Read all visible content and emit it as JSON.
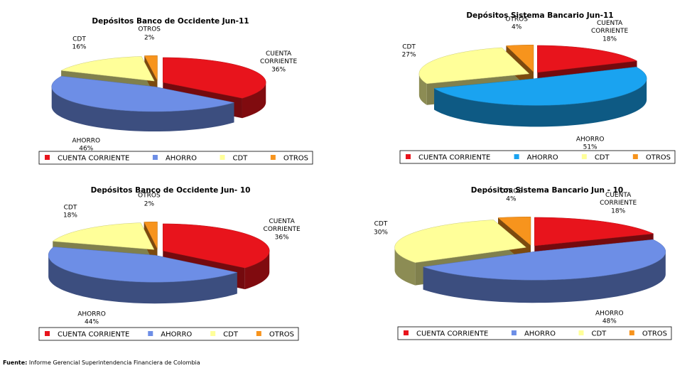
{
  "chart_data": [
    {
      "type": "pie",
      "title": "Depósitos Banco de Occidente Jun-11",
      "categories": [
        "CUENTA CORRIENTE",
        "AHORRO",
        "CDT",
        "OTROS"
      ],
      "values": [
        36,
        46,
        16,
        2
      ],
      "value_labels": [
        "36%",
        "46%",
        "16%",
        "2%"
      ],
      "colors": [
        "#e8141c",
        "#6d8ee6",
        "#ffff99",
        "#f7941d"
      ],
      "legend": "bottom"
    },
    {
      "type": "pie",
      "title": "Depósitos Sistema Bancario Jun-11",
      "categories": [
        "CUENTA CORRIENTE",
        "AHORRO",
        "CDT",
        "OTROS"
      ],
      "values": [
        18,
        51,
        27,
        4
      ],
      "value_labels": [
        "18%",
        "51%",
        "27%",
        "4%"
      ],
      "colors": [
        "#e8141c",
        "#1aa3f0",
        "#ffff99",
        "#f7941d"
      ],
      "legend": "bottom"
    },
    {
      "type": "pie",
      "title": "Depósitos Banco de Occidente Jun- 10",
      "categories": [
        "CUENTA CORRIENTE",
        "AHORRO",
        "CDT",
        "OTROS"
      ],
      "values": [
        36,
        44,
        18,
        2
      ],
      "value_labels": [
        "36%",
        "44%",
        "18%",
        "2%"
      ],
      "colors": [
        "#e8141c",
        "#6d8ee6",
        "#ffff99",
        "#f7941d"
      ],
      "legend": "bottom"
    },
    {
      "type": "pie",
      "title": "Depósitos Sistema Bancario Jun - 10",
      "categories": [
        "CUENTA CORRIENTE",
        "AHORRO",
        "CDT",
        "OTROS"
      ],
      "values": [
        18,
        48,
        30,
        4
      ],
      "value_labels": [
        "18%",
        "48%",
        "30%",
        "4%"
      ],
      "colors": [
        "#e8141c",
        "#6d8ee6",
        "#ffff99",
        "#f7941d"
      ],
      "legend": "bottom"
    }
  ],
  "source": {
    "label": "Fuente:",
    "text": "Informe Gerencial Superintendencia Financiera de Colombia"
  }
}
